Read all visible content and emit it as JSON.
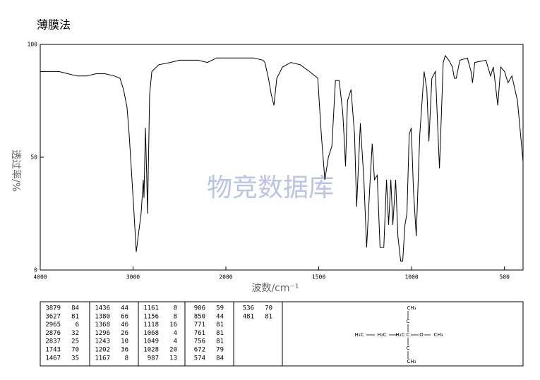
{
  "chart_data": {
    "type": "line",
    "title": "薄膜法",
    "x_label": "波数/cm⁻¹",
    "y_label": "透过率/%",
    "watermark": "物竞数据库",
    "xlim": [
      4000,
      400
    ],
    "x_scale_change": 2000,
    "ylim": [
      0,
      100
    ],
    "xticks": [
      4000,
      3000,
      2000,
      1500,
      1000,
      500
    ],
    "yticks": [
      0,
      50,
      100
    ],
    "color": "#000000",
    "x": [
      4000,
      3900,
      3800,
      3700,
      3600,
      3500,
      3400,
      3300,
      3200,
      3141,
      3103,
      3065,
      3042,
      3019,
      2989,
      2966,
      2935,
      2913,
      2890,
      2882,
      2867,
      2852,
      2844,
      2821,
      2798,
      2722,
      2600,
      2500,
      2400,
      2300,
      2200,
      2100,
      2000,
      1900,
      1850,
      1800,
      1790,
      1771,
      1756,
      1741,
      1726,
      1695,
      1650,
      1600,
      1550,
      1505,
      1486,
      1467,
      1448,
      1429,
      1410,
      1390,
      1371,
      1364,
      1356,
      1345,
      1326,
      1307,
      1296,
      1276,
      1257,
      1242,
      1223,
      1212,
      1200,
      1185,
      1170,
      1150,
      1135,
      1124,
      1112,
      1101,
      1086,
      1074,
      1059,
      1048,
      1036,
      1025,
      1013,
      1002,
      990,
      975,
      956,
      933,
      918,
      907,
      891,
      872,
      850,
      830,
      819,
      800,
      780,
      770,
      760,
      740,
      700,
      680,
      672,
      660,
      600,
      575,
      560,
      536,
      520,
      500,
      481,
      460,
      430,
      400
    ],
    "values": [
      88,
      88,
      88,
      87,
      86,
      86,
      87,
      87,
      86,
      85,
      80,
      72,
      60,
      45,
      25,
      8,
      18,
      25,
      40,
      32,
      63,
      40,
      25,
      78,
      88,
      91,
      92,
      93,
      93,
      93,
      92,
      94,
      94,
      94,
      94,
      93,
      92,
      85,
      78,
      73,
      85,
      90,
      92,
      91,
      88,
      85,
      60,
      40,
      50,
      55,
      84,
      84,
      70,
      60,
      46,
      75,
      80,
      60,
      28,
      65,
      40,
      10,
      40,
      56,
      40,
      42,
      10,
      10,
      40,
      20,
      40,
      20,
      40,
      15,
      4,
      4,
      20,
      25,
      60,
      63,
      35,
      15,
      60,
      88,
      80,
      57,
      85,
      88,
      45,
      92,
      95,
      93,
      90,
      85,
      85,
      93,
      94,
      88,
      83,
      92,
      93,
      86,
      90,
      73,
      90,
      88,
      83,
      86,
      75,
      48
    ]
  },
  "peak_table": {
    "columns": [
      [
        [
          3879,
          84
        ],
        [
          3627,
          81
        ],
        [
          2965,
          6
        ],
        [
          2876,
          32
        ],
        [
          2837,
          25
        ],
        [
          1743,
          70
        ],
        [
          1467,
          35
        ]
      ],
      [
        [
          1436,
          44
        ],
        [
          1380,
          66
        ],
        [
          1368,
          46
        ],
        [
          1296,
          26
        ],
        [
          1243,
          10
        ],
        [
          1202,
          36
        ],
        [
          1167,
          8
        ]
      ],
      [
        [
          1161,
          8
        ],
        [
          1156,
          8
        ],
        [
          1118,
          16
        ],
        [
          1068,
          4
        ],
        [
          1049,
          4
        ],
        [
          1028,
          20
        ],
        [
          987,
          13
        ]
      ],
      [
        [
          906,
          59
        ],
        [
          850,
          44
        ],
        [
          771,
          81
        ],
        [
          761,
          81
        ],
        [
          756,
          81
        ],
        [
          672,
          79
        ],
        [
          574,
          84
        ]
      ],
      [
        [
          536,
          70
        ],
        [
          481,
          81
        ]
      ]
    ]
  },
  "structure": {
    "atoms": [
      "CH₃",
      "C",
      "H₃C",
      "H₂C",
      "H₂C",
      "C",
      "O",
      "CH₃",
      "C",
      "CH₃"
    ]
  }
}
